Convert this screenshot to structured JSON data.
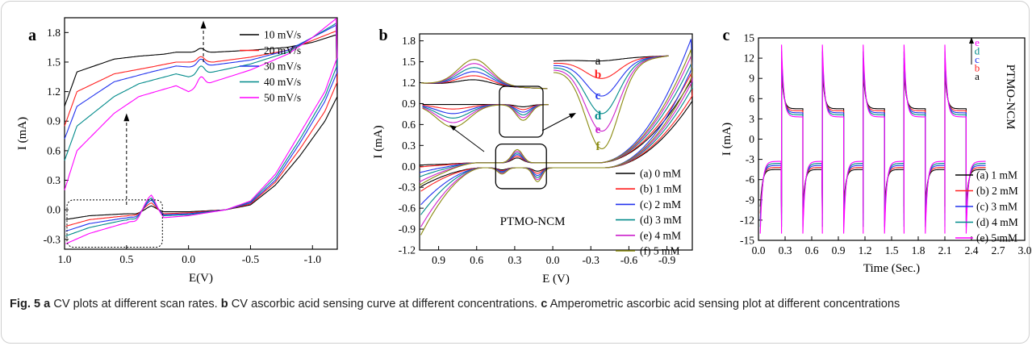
{
  "caption": {
    "fig_label": "Fig. 5",
    "a_label": "a",
    "a_text": "CV plots at different scan rates.",
    "b_label": "b",
    "b_text": "CV ascorbic acid sensing curve at different concentrations.",
    "c_label": "c",
    "c_text": "Amperometric ascorbic acid sensing plot at different concentrations"
  },
  "chart_data": [
    {
      "panel": "a",
      "type": "line",
      "xlabel": "E(V)",
      "ylabel": "I (mA)",
      "xlim": [
        1.0,
        -1.2
      ],
      "ylim": [
        -0.4,
        1.95
      ],
      "x_ticks": [
        "1.0",
        "0.5",
        "0.0",
        "-0.5",
        "-1.0"
      ],
      "y_ticks": [
        "-0.3",
        "0.0",
        "0.3",
        "0.6",
        "0.9",
        "1.2",
        "1.5",
        "1.8"
      ],
      "legend_position": "top-right",
      "series": [
        {
          "name": "10 mV/s",
          "color": "#000000",
          "upper": [
            [
              1.0,
              1.05
            ],
            [
              0.9,
              1.4
            ],
            [
              0.6,
              1.53
            ],
            [
              0.4,
              1.56
            ],
            [
              0.2,
              1.58
            ],
            [
              0.1,
              1.6
            ],
            [
              0.0,
              1.6
            ],
            [
              -0.2,
              1.6
            ],
            [
              -0.5,
              1.62
            ],
            [
              -0.8,
              1.65
            ],
            [
              -1.0,
              1.7
            ],
            [
              -1.2,
              1.78
            ]
          ],
          "lower": [
            [
              1.0,
              -0.1
            ],
            [
              0.8,
              -0.06
            ],
            [
              0.5,
              -0.04
            ],
            [
              0.35,
              0.0
            ],
            [
              0.3,
              0.02
            ],
            [
              0.2,
              -0.02
            ],
            [
              0.0,
              -0.02
            ],
            [
              -0.3,
              0.0
            ],
            [
              -0.5,
              0.05
            ],
            [
              -0.7,
              0.25
            ],
            [
              -0.9,
              0.55
            ],
            [
              -1.1,
              0.9
            ],
            [
              -1.2,
              1.15
            ]
          ]
        },
        {
          "name": "20 mV/s",
          "color": "#ff2020",
          "upper": [
            [
              1.0,
              0.85
            ],
            [
              0.9,
              1.2
            ],
            [
              0.6,
              1.38
            ],
            [
              0.3,
              1.45
            ],
            [
              0.1,
              1.5
            ],
            [
              0.0,
              1.5
            ],
            [
              -0.2,
              1.5
            ],
            [
              -0.5,
              1.55
            ],
            [
              -0.8,
              1.62
            ],
            [
              -1.0,
              1.72
            ],
            [
              -1.2,
              1.82
            ]
          ],
          "lower": [
            [
              1.0,
              -0.17
            ],
            [
              0.8,
              -0.1
            ],
            [
              0.5,
              -0.06
            ],
            [
              0.35,
              0.02
            ],
            [
              0.3,
              0.04
            ],
            [
              0.2,
              -0.04
            ],
            [
              0.0,
              -0.03
            ],
            [
              -0.3,
              0.0
            ],
            [
              -0.5,
              0.06
            ],
            [
              -0.7,
              0.28
            ],
            [
              -0.9,
              0.62
            ],
            [
              -1.1,
              1.0
            ],
            [
              -1.2,
              1.3
            ]
          ]
        },
        {
          "name": "30 mV/s",
          "color": "#2233ee",
          "upper": [
            [
              1.0,
              0.72
            ],
            [
              0.9,
              1.05
            ],
            [
              0.6,
              1.3
            ],
            [
              0.3,
              1.4
            ],
            [
              0.1,
              1.46
            ],
            [
              0.0,
              1.45
            ],
            [
              -0.2,
              1.47
            ],
            [
              -0.5,
              1.52
            ],
            [
              -0.8,
              1.62
            ],
            [
              -1.0,
              1.75
            ],
            [
              -1.2,
              1.88
            ]
          ],
          "lower": [
            [
              1.0,
              -0.22
            ],
            [
              0.8,
              -0.14
            ],
            [
              0.5,
              -0.08
            ],
            [
              0.35,
              0.03
            ],
            [
              0.3,
              0.06
            ],
            [
              0.2,
              -0.05
            ],
            [
              0.0,
              -0.04
            ],
            [
              -0.3,
              0.0
            ],
            [
              -0.5,
              0.07
            ],
            [
              -0.7,
              0.3
            ],
            [
              -0.9,
              0.68
            ],
            [
              -1.1,
              1.1
            ],
            [
              -1.2,
              1.4
            ]
          ]
        },
        {
          "name": "40 mV/s",
          "color": "#008a8a",
          "upper": [
            [
              1.0,
              0.5
            ],
            [
              0.9,
              0.85
            ],
            [
              0.6,
              1.15
            ],
            [
              0.4,
              1.28
            ],
            [
              0.1,
              1.38
            ],
            [
              0.0,
              1.35
            ],
            [
              -0.2,
              1.4
            ],
            [
              -0.5,
              1.48
            ],
            [
              -0.8,
              1.6
            ],
            [
              -1.0,
              1.75
            ],
            [
              -1.2,
              1.9
            ]
          ],
          "lower": [
            [
              1.0,
              -0.27
            ],
            [
              0.8,
              -0.18
            ],
            [
              0.5,
              -0.1
            ],
            [
              0.35,
              0.04
            ],
            [
              0.3,
              0.07
            ],
            [
              0.2,
              -0.06
            ],
            [
              0.0,
              -0.05
            ],
            [
              -0.3,
              0.0
            ],
            [
              -0.5,
              0.08
            ],
            [
              -0.7,
              0.33
            ],
            [
              -0.9,
              0.72
            ],
            [
              -1.1,
              1.15
            ],
            [
              -1.2,
              1.47
            ]
          ]
        },
        {
          "name": "50 mV/s",
          "color": "#ff00ff",
          "upper": [
            [
              1.0,
              0.2
            ],
            [
              0.9,
              0.6
            ],
            [
              0.6,
              0.98
            ],
            [
              0.4,
              1.15
            ],
            [
              0.1,
              1.26
            ],
            [
              0.0,
              1.2
            ],
            [
              -0.2,
              1.3
            ],
            [
              -0.5,
              1.42
            ],
            [
              -0.8,
              1.58
            ],
            [
              -1.0,
              1.75
            ],
            [
              -1.2,
              1.95
            ]
          ],
          "lower": [
            [
              1.0,
              -0.35
            ],
            [
              0.8,
              -0.24
            ],
            [
              0.5,
              -0.13
            ],
            [
              0.35,
              0.05
            ],
            [
              0.3,
              0.09
            ],
            [
              0.2,
              -0.08
            ],
            [
              0.0,
              -0.06
            ],
            [
              -0.3,
              0.0
            ],
            [
              -0.5,
              0.09
            ],
            [
              -0.7,
              0.36
            ],
            [
              -0.9,
              0.78
            ],
            [
              -1.1,
              1.2
            ],
            [
              -1.2,
              1.55
            ]
          ]
        }
      ]
    },
    {
      "panel": "b",
      "type": "line",
      "xlabel": "E (V)",
      "ylabel": "I (mA)",
      "xlim": [
        1.05,
        -1.1
      ],
      "ylim": [
        -1.2,
        1.9
      ],
      "x_ticks": [
        "0.9",
        "0.6",
        "0.3",
        "0.0",
        "-0.3",
        "-0.6",
        "-0.9"
      ],
      "y_ticks": [
        "-1.2",
        "-0.9",
        "-0.6",
        "-0.3",
        "0.0",
        "0.3",
        "0.6",
        "0.9",
        "1.2",
        "1.5",
        "1.8"
      ],
      "annotation": "PTMO-NCM",
      "inset_labels": [
        "a",
        "b",
        "c",
        "d",
        "e",
        "f"
      ],
      "series": [
        {
          "name": "(a) 0 mM",
          "color": "#000000",
          "end_low": -0.28,
          "end_high": 1.25
        },
        {
          "name": "(b) 1 mM",
          "color": "#ff2020",
          "end_low": -0.35,
          "end_high": 1.35
        },
        {
          "name": "(c) 2 mM",
          "color": "#2233ee",
          "end_low": -0.55,
          "end_high": 1.88
        },
        {
          "name": "(d) 3 mM",
          "color": "#008a8a",
          "end_low": -0.7,
          "end_high": 1.5
        },
        {
          "name": "(e) 4 mM",
          "color": "#cc22cc",
          "end_low": -0.88,
          "end_high": 1.62
        },
        {
          "name": "(f) 5 mM",
          "color": "#8a8a10",
          "end_low": -1.0,
          "end_high": 1.72
        }
      ]
    },
    {
      "panel": "c",
      "type": "line",
      "xlabel": "Time (Sec.)",
      "ylabel": "I (mA)",
      "xlim": [
        0.0,
        3.0
      ],
      "ylim": [
        -15,
        15
      ],
      "x_ticks": [
        "0.0",
        "0.3",
        "0.6",
        "0.9",
        "1.2",
        "1.5",
        "1.8",
        "2.1",
        "2.4",
        "2.7",
        "3.0"
      ],
      "y_ticks": [
        "-15",
        "-12",
        "-9",
        "-6",
        "-3",
        "0",
        "3",
        "6",
        "9",
        "12",
        "15"
      ],
      "annotation": "PTMO-NCM",
      "side_labels": [
        "e",
        "d",
        "c",
        "b",
        "a"
      ],
      "series": [
        {
          "name": "(a) 1 mM",
          "color": "#000000",
          "peak": 10,
          "settle": 4.5
        },
        {
          "name": "(b) 2 mM",
          "color": "#ff2020",
          "peak": 11,
          "settle": 4.2
        },
        {
          "name": "(c) 3 mM",
          "color": "#2233ee",
          "peak": 12,
          "settle": 3.9
        },
        {
          "name": "(d) 4 mM",
          "color": "#008a8a",
          "peak": 13,
          "settle": 3.6
        },
        {
          "name": "(e) 5 mM",
          "color": "#ff00ff",
          "peak": 14,
          "settle": 3.3
        }
      ]
    }
  ]
}
